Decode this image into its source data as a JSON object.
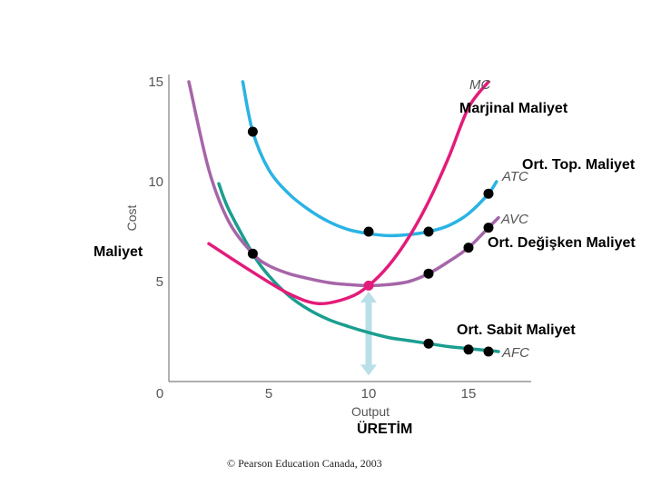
{
  "chart_data": {
    "type": "line",
    "xlabel": "Output",
    "ylabel": "Cost",
    "xlim": [
      0,
      17.5
    ],
    "ylim": [
      0,
      15
    ],
    "xticks": [
      "0",
      "5",
      "10",
      "15"
    ],
    "yticks": [
      "5",
      "10",
      "15"
    ],
    "grid": false,
    "series": [
      {
        "name": "MC",
        "color": "#e31b7a",
        "x": [
          2.0,
          4.0,
          6.0,
          7.5,
          9.0,
          10.0,
          11.0,
          12.0,
          13.0,
          14.0,
          15.0,
          16.0
        ],
        "y": [
          6.9,
          5.6,
          4.4,
          3.9,
          4.2,
          4.8,
          5.8,
          7.2,
          9.0,
          11.2,
          13.7,
          15.0
        ]
      },
      {
        "name": "ATC",
        "color": "#29b3e4",
        "x": [
          3.7,
          4.2,
          5.0,
          6.0,
          7.0,
          8.0,
          9.0,
          10.0,
          11.0,
          12.0,
          13.0,
          14.0,
          15.0,
          16.0,
          16.4
        ],
        "y": [
          15.0,
          12.5,
          10.6,
          9.4,
          8.6,
          8.0,
          7.6,
          7.4,
          7.3,
          7.35,
          7.5,
          7.8,
          8.4,
          9.4,
          10.0
        ]
      },
      {
        "name": "AVC",
        "color": "#a665a9",
        "x": [
          1.0,
          2.0,
          3.0,
          4.2,
          5.0,
          6.0,
          7.0,
          8.0,
          9.0,
          10.0,
          11.0,
          12.0,
          13.0,
          14.0,
          15.0,
          16.0,
          16.5
        ],
        "y": [
          15.0,
          10.6,
          8.0,
          6.4,
          5.8,
          5.4,
          5.15,
          4.95,
          4.85,
          4.8,
          4.85,
          5.0,
          5.4,
          6.0,
          6.7,
          7.7,
          8.2
        ]
      },
      {
        "name": "AFC",
        "color": "#1a9e8f",
        "x": [
          2.5,
          3.0,
          4.2,
          5.0,
          6.0,
          7.0,
          8.0,
          9.0,
          10.0,
          11.0,
          12.0,
          13.0,
          14.0,
          15.0,
          16.0,
          16.5
        ],
        "y": [
          9.9,
          8.6,
          6.4,
          5.3,
          4.3,
          3.6,
          3.1,
          2.75,
          2.45,
          2.2,
          2.05,
          1.9,
          1.75,
          1.65,
          1.55,
          1.5
        ]
      }
    ],
    "points": [
      {
        "x": 4.2,
        "y": 12.5
      },
      {
        "x": 10.0,
        "y": 7.5
      },
      {
        "x": 13.0,
        "y": 7.5
      },
      {
        "x": 16.0,
        "y": 9.4
      },
      {
        "x": 4.2,
        "y": 6.4
      },
      {
        "x": 13.0,
        "y": 5.4
      },
      {
        "x": 15.0,
        "y": 6.7
      },
      {
        "x": 16.0,
        "y": 7.7
      },
      {
        "x": 13.0,
        "y": 1.9
      },
      {
        "x": 15.0,
        "y": 1.6
      },
      {
        "x": 16.0,
        "y": 1.5
      }
    ],
    "intersection_point": {
      "x": 10.0,
      "y": 4.8
    },
    "arrow": {
      "x": 10.0,
      "from_y": 0.3,
      "to_y": 4.5,
      "color": "#b9dfe8"
    }
  },
  "labels": {
    "mc": "MC",
    "atc": "ATC",
    "avc": "AVC",
    "afc": "AFC"
  },
  "annotations": {
    "mc": "Marjinal Maliyet",
    "atc": "Ort. Top. Maliyet",
    "avc": "Ort. Değişken Maliyet",
    "afc": "Ort. Sabit Maliyet",
    "cost": "Maliyet",
    "output": "ÜRETİM"
  },
  "copyright": "© Pearson Education Canada, 2003"
}
